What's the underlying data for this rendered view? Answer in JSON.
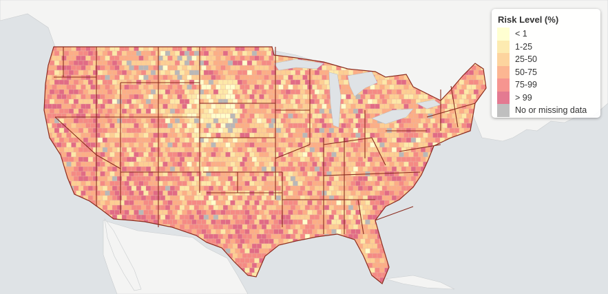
{
  "legend": {
    "title": "Risk Level (%)",
    "items": [
      {
        "label": "< 1",
        "color": "#ffffcc"
      },
      {
        "label": "1-25",
        "color": "#fde9a8"
      },
      {
        "label": "25-50",
        "color": "#fdcf93"
      },
      {
        "label": "50-75",
        "color": "#fcae86"
      },
      {
        "label": "75-99",
        "color": "#f58a84"
      },
      {
        "label": "> 99",
        "color": "#e16b85"
      },
      {
        "label": "No or missing data",
        "color": "#b8b8b8"
      }
    ]
  },
  "map": {
    "land_color": "#f4f4f3",
    "water_color": "#dfe3e6",
    "state_border_color": "#8a2b1e"
  }
}
